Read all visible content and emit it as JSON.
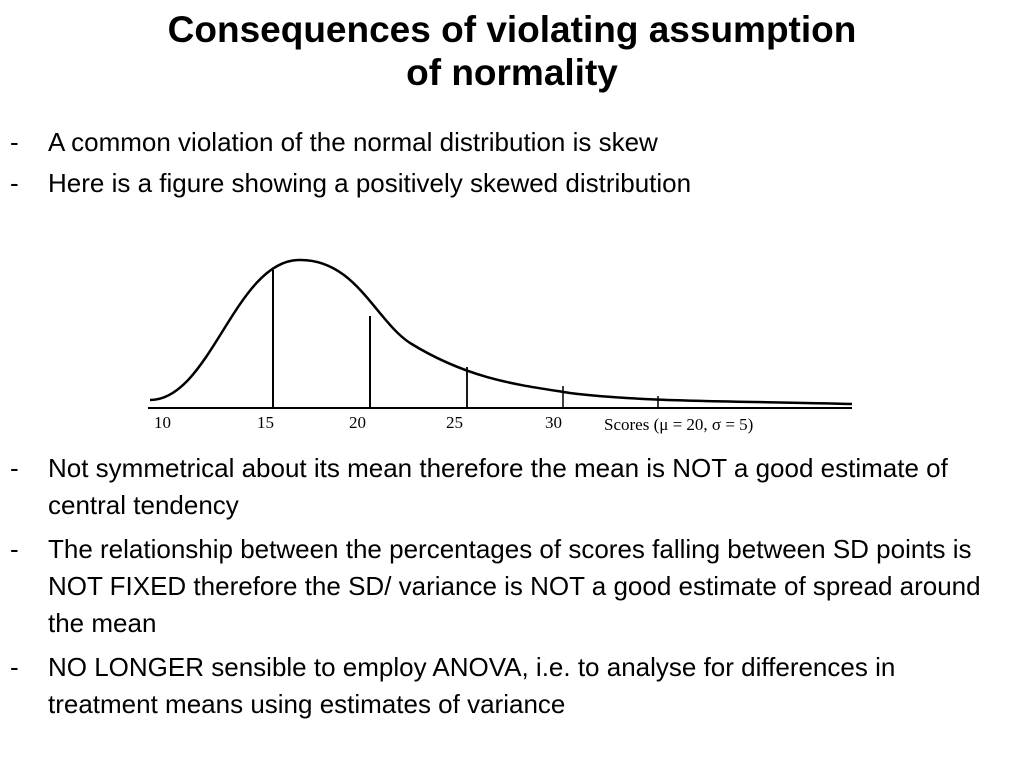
{
  "slide": {
    "title_line1": "Consequences of violating assumption",
    "title_line2": "of normality",
    "bullet_marker": "-",
    "intro_bullets": [
      "A common violation of the normal distribution is skew",
      "Here is a figure showing a positively skewed distribution"
    ],
    "points": [
      "Not symmetrical about its mean therefore the mean is NOT a good estimate of central tendency",
      "The relationship between the percentages of scores falling between SD points is NOT FIXED therefore the SD/ variance is NOT a good estimate of spread around the mean",
      "NO LONGER sensible to employ ANOVA, i.e. to analyse for differences in treatment means using estimates of variance"
    ]
  },
  "figure": {
    "type": "positively-skewed-distribution-curve",
    "ticks": [
      "10",
      "15",
      "20",
      "25",
      "30"
    ],
    "axis_label": "Scores (μ = 20, σ = 5)",
    "line_color": "#000000"
  }
}
